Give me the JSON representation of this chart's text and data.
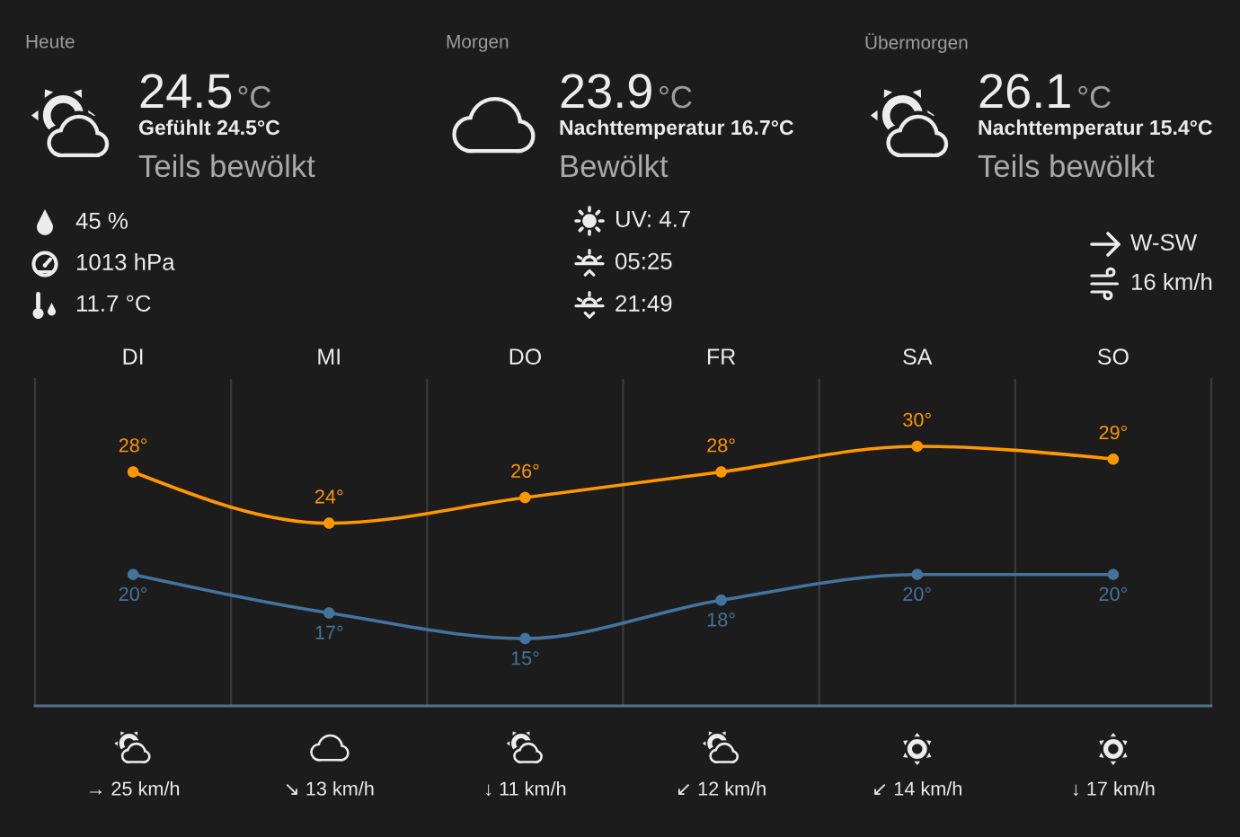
{
  "chart_data": [
    {
      "type": "other",
      "title": "Heute",
      "annotations": [
        "24.5",
        "°C",
        "Gefühlt 24.5°C",
        "Teils bewölkt",
        "45 %",
        "1013 hPa",
        "11.7 °C"
      ]
    },
    {
      "type": "other",
      "title": "Morgen",
      "annotations": [
        "23.9",
        "°C",
        "Nachttemperatur 16.7°C",
        "Bewölkt",
        "UV: 4.7",
        "05:25",
        "21:49"
      ]
    },
    {
      "type": "other",
      "title": "Übermorgen",
      "annotations": [
        "26.1",
        "°C",
        "Nachttemperatur 15.4°C",
        "Teils bewölkt",
        "W-SW",
        "16 km/h"
      ]
    },
    {
      "type": "line",
      "categories": [
        "DI",
        "MI",
        "DO",
        "FR",
        "SA",
        "SO"
      ],
      "series": [
        {
          "color": "#ff9800",
          "values": [
            28,
            24,
            26,
            28,
            30,
            29
          ],
          "value_labels": [
            "28°",
            "24°",
            "26°",
            "28°",
            "30°",
            "29°"
          ]
        },
        {
          "color": "#44739e",
          "values": [
            20,
            17,
            15,
            18,
            20,
            20
          ],
          "value_labels": [
            "20°",
            "17°",
            "15°",
            "18°",
            "20°",
            "20°"
          ]
        }
      ],
      "marker": "circle",
      "grid": "x",
      "annotations": [
        "→ 25 km/h",
        "↘ 13 km/h",
        "↓ 11 km/h",
        "↙ 12 km/h",
        "↙ 14 km/h",
        "↓ 17 km/h"
      ]
    }
  ]
}
